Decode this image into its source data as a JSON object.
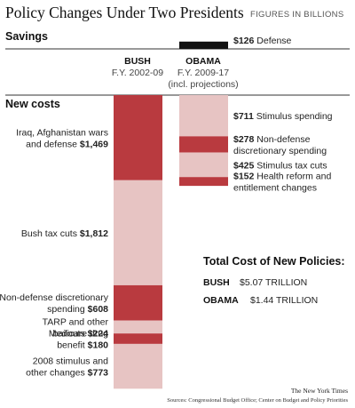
{
  "chart_data": {
    "type": "bar",
    "title": "Policy Changes Under Two Presidents",
    "subtitle": "FIGURES IN BILLIONS",
    "savings_label": "Savings",
    "new_costs_label": "New costs",
    "presidents": [
      {
        "name": "BUSH",
        "period": "F.Y. 2002-09",
        "note": ""
      },
      {
        "name": "OBAMA",
        "period": "F.Y. 2009-17",
        "note": "(incl. projections)"
      }
    ],
    "savings": [
      {
        "president": "OBAMA",
        "value": 126,
        "value_label": "$126",
        "text": "Defense"
      }
    ],
    "series": [
      {
        "name": "BUSH",
        "segments": [
          {
            "lines": [
              "Iraq, Afghanistan wars",
              "and defense"
            ],
            "value_label": "$1,469",
            "value": 1469,
            "color": "#b93a3f"
          },
          {
            "lines": [
              "Bush tax cuts"
            ],
            "value_label": "$1,812",
            "value": 1812,
            "color": "#e7c4c3"
          },
          {
            "lines": [
              "Non-defense discretionary",
              "spending"
            ],
            "value_label": "$608",
            "value": 608,
            "color": "#b93a3f"
          },
          {
            "lines": [
              "TARP and other",
              "bailouts"
            ],
            "value_label": "$224",
            "value": 224,
            "color": "#e7c4c3"
          },
          {
            "lines": [
              "Medicare drug",
              "benefit"
            ],
            "value_label": "$180",
            "value": 180,
            "color": "#b93a3f"
          },
          {
            "lines": [
              "2008 stimulus and",
              "other changes"
            ],
            "value_label": "$773",
            "value": 773,
            "color": "#e7c4c3"
          }
        ]
      },
      {
        "name": "OBAMA",
        "segments": [
          {
            "lines": [
              "Stimulus spending"
            ],
            "value_label": "$711",
            "value": 711,
            "color": "#e7c4c3"
          },
          {
            "lines": [
              "Non-defense",
              "discretionary spending"
            ],
            "value_label": "$278",
            "value": 278,
            "color": "#b93a3f"
          },
          {
            "lines": [
              "Stimulus tax cuts"
            ],
            "value_label": "$425",
            "value": 425,
            "color": "#e7c4c3"
          },
          {
            "lines": [
              "Health reform and",
              "entitlement changes"
            ],
            "value_label": "$152",
            "value": 152,
            "color": "#b93a3f"
          }
        ]
      }
    ],
    "totals": {
      "heading": "Total Cost of New Policies:",
      "rows": [
        {
          "name": "BUSH",
          "value": "$5.07 TRILLION"
        },
        {
          "name": "OBAMA",
          "value": "$1.44 TRILLION"
        }
      ]
    },
    "credit": "The New York Times",
    "source": "Sources: Congressional Budget Office; Center on Budget and Policy Priorities"
  }
}
